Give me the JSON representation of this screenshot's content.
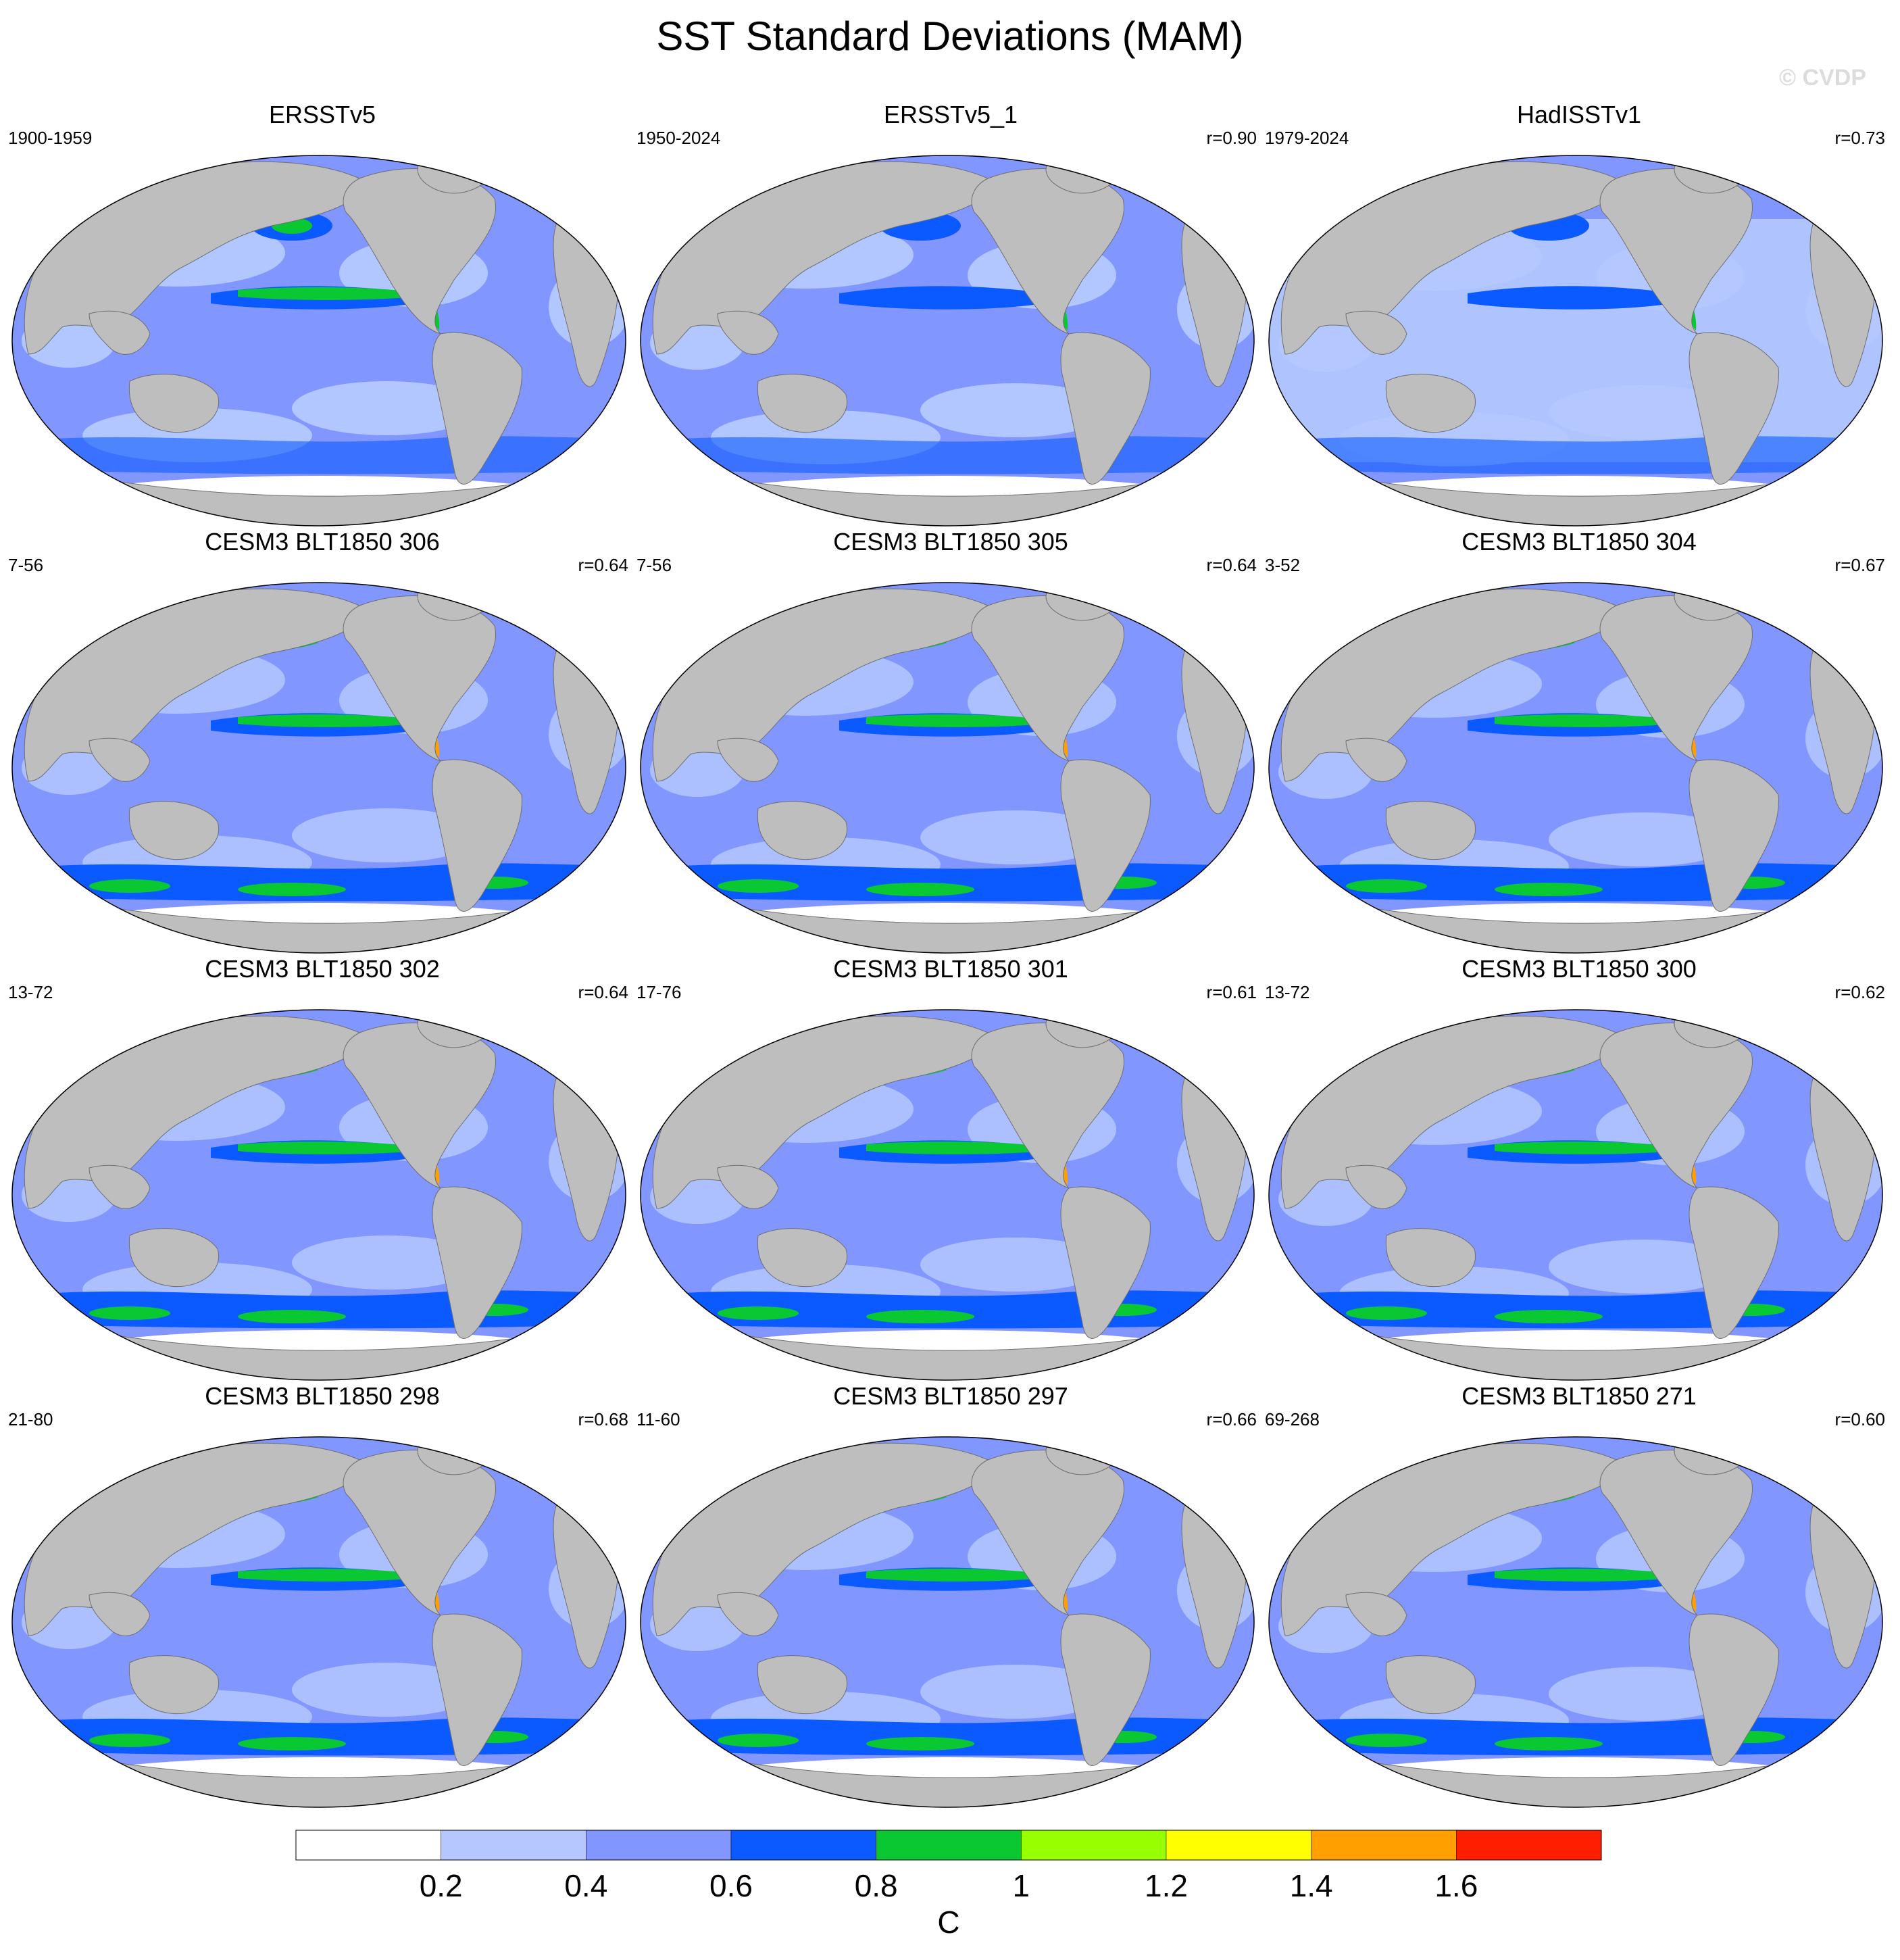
{
  "page_title": "SST Standard Deviations (MAM)",
  "watermark": "© CVDP",
  "panels": [
    {
      "title": "ERSSTv5",
      "years": "1900-1959",
      "r": ""
    },
    {
      "title": "ERSSTv5_1",
      "years": "1950-2024",
      "r": "r=0.90"
    },
    {
      "title": "HadISSTv1",
      "years": "1979-2024",
      "r": "r=0.73"
    },
    {
      "title": "CESM3 BLT1850 306",
      "years": "7-56",
      "r": "r=0.64"
    },
    {
      "title": "CESM3 BLT1850 305",
      "years": "7-56",
      "r": "r=0.64"
    },
    {
      "title": "CESM3 BLT1850 304",
      "years": "3-52",
      "r": "r=0.67"
    },
    {
      "title": "CESM3 BLT1850 302",
      "years": "13-72",
      "r": "r=0.64"
    },
    {
      "title": "CESM3 BLT1850 301",
      "years": "17-76",
      "r": "r=0.61"
    },
    {
      "title": "CESM3 BLT1850 300",
      "years": "13-72",
      "r": "r=0.62"
    },
    {
      "title": "CESM3 BLT1850 298",
      "years": "21-80",
      "r": "r=0.68"
    },
    {
      "title": "CESM3 BLT1850 297",
      "years": "11-60",
      "r": "r=0.66"
    },
    {
      "title": "CESM3 BLT1850 271",
      "years": "69-268",
      "r": "r=0.60"
    }
  ],
  "colorbar": {
    "unit": "C",
    "tick_labels": [
      "0.2",
      "0.4",
      "0.6",
      "0.8",
      "1",
      "1.2",
      "1.4",
      "1.6"
    ],
    "colors": [
      "#ffffff",
      "#b4c8ff",
      "#8296ff",
      "#0a5aff",
      "#0ac832",
      "#96ff00",
      "#ffff00",
      "#ffa000",
      "#ff1e00"
    ]
  },
  "land_color": "#bebebe",
  "ocean_base_color": "#8296ff"
}
